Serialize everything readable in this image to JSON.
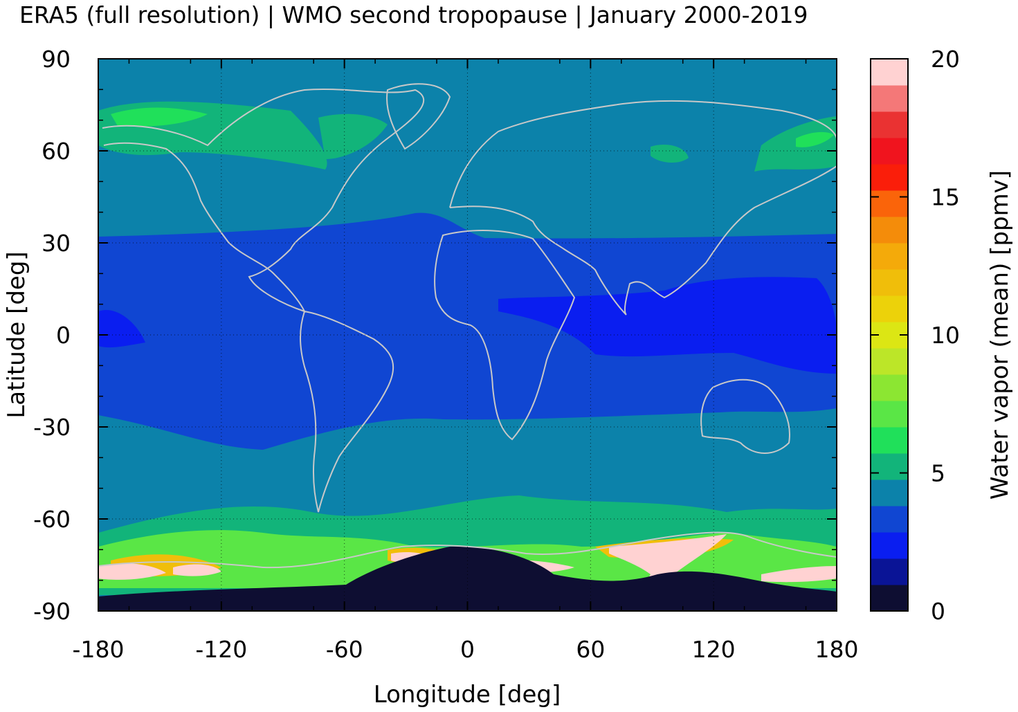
{
  "title": "ERA5 (full resolution) | WMO second tropopause | January 2000-2019",
  "chart_data": {
    "type": "heatmap",
    "title": "ERA5 (full resolution) | WMO second tropopause | January 2000-2019",
    "xlabel": "Longitude [deg]",
    "ylabel": "Latitude [deg]",
    "colorbar_label": "Water vapor (mean) [ppmv]",
    "xlim": [
      -180,
      180
    ],
    "ylim": [
      -90,
      90
    ],
    "x_ticks": [
      -180,
      -120,
      -60,
      0,
      60,
      120,
      180
    ],
    "y_ticks": [
      90,
      60,
      30,
      0,
      -30,
      -60,
      -90
    ],
    "x_tick_labels": [
      "-180",
      "-120",
      "-60",
      "0",
      "60",
      "120",
      "180"
    ],
    "y_tick_labels": [
      "90",
      "60",
      "30",
      "0",
      "-30",
      "-60",
      "-90"
    ],
    "grid": true,
    "colorbar_range": [
      0,
      20
    ],
    "colorbar_ticks": [
      0,
      5,
      10,
      15,
      20
    ],
    "colorbar_tick_labels": [
      "0",
      "5",
      "10",
      "15",
      "20"
    ],
    "colorbar_colors": [
      "#0e0e32",
      "#0a1496",
      "#0a1ef0",
      "#1046d2",
      "#0c82aa",
      "#12b47a",
      "#20e05a",
      "#5ae646",
      "#8ce632",
      "#bce628",
      "#dce614",
      "#ecd20a",
      "#f0be0a",
      "#f4aa0a",
      "#f48c0a",
      "#fa640a",
      "#fa1e0a",
      "#f0141e",
      "#ea3232",
      "#f47878",
      "#ffd2d2"
    ],
    "zonal_bands": [
      {
        "lat_min": 68,
        "lat_max": 90,
        "value_ppmv": 4.5
      },
      {
        "lat_min": 30,
        "lat_max": 68,
        "value_ppmv": 4.5
      },
      {
        "lat_min": 12,
        "lat_max": 30,
        "value_ppmv": 3.5
      },
      {
        "lat_min": -10,
        "lat_max": 12,
        "value_ppmv": 3.0
      },
      {
        "lat_min": -30,
        "lat_max": -10,
        "value_ppmv": 3.5
      },
      {
        "lat_min": -55,
        "lat_max": -30,
        "value_ppmv": 4.5
      },
      {
        "lat_min": -68,
        "lat_max": -55,
        "value_ppmv": 5.5
      },
      {
        "lat_min": -80,
        "lat_max": -68,
        "value_ppmv": 8.0
      },
      {
        "lat_min": -90,
        "lat_max": -84,
        "value_ppmv": 0.5
      }
    ]
  }
}
